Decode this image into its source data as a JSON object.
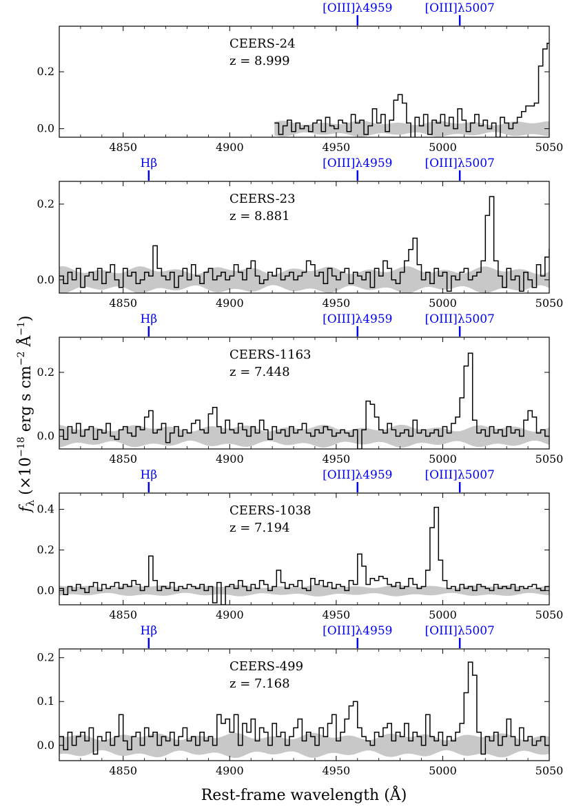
{
  "figure": {
    "xlabel": "Rest-frame wavelength (Å)",
    "ylabel_main": "f",
    "ylabel_sub": "λ",
    "ylabel_rest": " (×10",
    "ylabel_exp1": "−18",
    "ylabel_mid": " erg s cm",
    "ylabel_exp2": "−2",
    "ylabel_mid2": " Å",
    "ylabel_exp3": "−1",
    "ylabel_end": ")"
  },
  "style": {
    "spectrum_color": "#000000",
    "error_color": "#c8c8c8",
    "line_marker_color": "#0000ee"
  },
  "chart_data": [
    {
      "type": "line",
      "name": "CEERS-24",
      "redshift": "z = 8.999",
      "xlim": [
        4820,
        5050
      ],
      "ylim": [
        -0.03,
        0.36
      ],
      "yticks": [
        0.0,
        0.2
      ],
      "xticks": [
        4850,
        4900,
        4950,
        5000,
        5050
      ],
      "lines": [
        {
          "label": "[OIII]λ4959",
          "x": 4960
        },
        {
          "label": "[OIII]λ5007",
          "x": 5008
        }
      ],
      "x_start": 4921,
      "x_step": 2,
      "flux": [
        0.02,
        -0.02,
        0.01,
        0.03,
        -0.01,
        0.02,
        0.0,
        0.01,
        -0.01,
        0.02,
        0.03,
        -0.01,
        0.04,
        0.01,
        0.0,
        0.03,
        0.02,
        -0.01,
        0.05,
        0.02,
        0.03,
        -0.02,
        0.01,
        0.07,
        0.02,
        0.05,
        -0.01,
        0.03,
        0.1,
        0.12,
        0.09,
        0.02,
        -0.04,
        0.04,
        0.01,
        0.05,
        -0.02,
        0.03,
        0.02,
        0.05,
        0.01,
        0.04,
        0.0,
        0.07,
        0.03,
        -0.01,
        0.02,
        0.05,
        0.01,
        0.03,
        0.0,
        0.02,
        -0.03,
        0.04,
        0.02,
        0.0,
        0.02,
        0.04,
        0.06,
        0.08,
        0.08,
        0.09,
        0.22,
        0.28,
        0.3,
        0.05,
        -0.02,
        0.04,
        0.01,
        0.02,
        0.05,
        0.0,
        0.03,
        -0.01,
        0.05,
        -0.02,
        0.03,
        0.01,
        0.0,
        0.02,
        0.04,
        -0.01,
        0.02,
        -0.02,
        0.06,
        0.03,
        0.0,
        0.01,
        0.03,
        0.02,
        -0.02,
        0.01,
        0.04,
        0.02,
        0.0,
        -0.02,
        0.03,
        0.01,
        0.04,
        0.0,
        0.02,
        0.03,
        0.01,
        -0.01,
        0.04,
        0.02,
        0.05,
        0.0,
        0.02,
        0.03,
        0.01,
        0.04,
        0.02,
        0.01,
        0.0,
        0.02,
        0.03,
        0.04,
        0.02,
        0.0,
        0.01,
        0.02,
        0.03,
        -0.01,
        0.02,
        0.01,
        0.0,
        0.02,
        0.01,
        0.0,
        0.03,
        -0.02,
        0.02,
        0.01,
        0.0,
        0.03,
        0.01,
        0.0,
        0.02,
        0.01,
        0.02,
        0.01,
        -0.01,
        0.02,
        0.06,
        0.03,
        0.01,
        0.07,
        0.02,
        0.03,
        -0.01,
        0.02,
        0.05,
        0.0,
        0.01,
        0.03,
        0.02,
        0.01,
        0.0,
        0.02,
        0.03,
        0.04,
        0.01,
        0.02
      ],
      "error": 0.02
    },
    {
      "type": "line",
      "name": "CEERS-23",
      "redshift": "z = 8.881",
      "xlim": [
        4820,
        5050
      ],
      "ylim": [
        -0.035,
        0.26
      ],
      "yticks": [
        0.0,
        0.2
      ],
      "xticks": [
        4850,
        4900,
        4950,
        5000,
        5050
      ],
      "lines": [
        {
          "label": "Hβ",
          "x": 4862
        },
        {
          "label": "[OIII]λ4959",
          "x": 4960
        },
        {
          "label": "[OIII]λ5007",
          "x": 5008
        }
      ],
      "x_start": 4820,
      "x_step": 2,
      "flux": [
        0.01,
        -0.01,
        0.02,
        0.0,
        0.03,
        -0.02,
        0.01,
        0.02,
        0.0,
        0.03,
        -0.01,
        0.02,
        0.04,
        0.0,
        -0.02,
        0.03,
        0.01,
        0.02,
        -0.01,
        0.0,
        0.02,
        0.01,
        0.09,
        0.03,
        0.01,
        0.0,
        0.02,
        -0.02,
        0.01,
        0.03,
        0.0,
        0.04,
        0.01,
        -0.01,
        0.02,
        0.03,
        0.0,
        0.01,
        0.02,
        0.0,
        0.01,
        0.04,
        0.02,
        0.0,
        0.03,
        0.05,
        0.01,
        -0.01,
        0.0,
        0.02,
        0.01,
        0.03,
        0.0,
        0.01,
        0.02,
        0.0,
        0.01,
        0.02,
        0.05,
        0.04,
        0.01,
        0.02,
        -0.01,
        0.03,
        0.01,
        0.0,
        0.02,
        0.03,
        -0.01,
        0.02,
        0.01,
        0.0,
        0.02,
        -0.02,
        0.03,
        0.01,
        0.05,
        0.03,
        0.0,
        -0.01,
        0.02,
        0.05,
        0.08,
        0.11,
        0.04,
        0.0,
        0.02,
        -0.01,
        0.03,
        0.01,
        0.02,
        -0.03,
        0.01,
        0.0,
        0.02,
        0.03,
        0.0,
        0.01,
        0.02,
        0.05,
        0.17,
        0.22,
        0.05,
        0.01,
        -0.02,
        0.03,
        0.0,
        0.01,
        -0.03,
        0.02,
        0.0,
        -0.02,
        0.04,
        0.01,
        0.06,
        0.08,
        0.01,
        0.0,
        -0.03
      ],
      "error": 0.025
    },
    {
      "type": "line",
      "name": "CEERS-1163",
      "redshift": "z = 7.448",
      "xlim": [
        4820,
        5050
      ],
      "ylim": [
        -0.04,
        0.31
      ],
      "yticks": [
        0.0,
        0.2
      ],
      "xticks": [
        4850,
        4900,
        4950,
        5000,
        5050
      ],
      "lines": [
        {
          "label": "Hβ",
          "x": 4862
        },
        {
          "label": "[OIII]λ4959",
          "x": 4960
        },
        {
          "label": "[OIII]λ5007",
          "x": 5008
        }
      ],
      "x_start": 4820,
      "x_step": 2,
      "flux": [
        0.02,
        -0.01,
        0.03,
        0.01,
        0.04,
        0.0,
        0.02,
        0.03,
        -0.01,
        0.02,
        0.01,
        0.04,
        0.0,
        -0.01,
        0.02,
        0.03,
        0.01,
        0.0,
        0.03,
        0.02,
        0.06,
        0.08,
        0.01,
        0.02,
        0.04,
        -0.02,
        0.01,
        0.03,
        0.0,
        0.02,
        0.01,
        0.04,
        0.05,
        0.02,
        0.01,
        0.07,
        0.09,
        0.03,
        0.01,
        0.05,
        0.02,
        0.01,
        0.04,
        0.02,
        0.0,
        0.03,
        0.01,
        0.05,
        0.02,
        -0.01,
        0.03,
        0.01,
        0.02,
        0.0,
        0.03,
        0.01,
        0.02,
        0.04,
        0.01,
        0.0,
        0.02,
        0.01,
        0.03,
        0.02,
        0.0,
        0.01,
        0.02,
        0.01,
        0.0,
        0.02,
        -0.04,
        0.02,
        0.11,
        0.1,
        0.06,
        0.02,
        0.01,
        0.04,
        0.02,
        0.0,
        0.01,
        0.02,
        0.0,
        0.05,
        0.01,
        0.02,
        0.0,
        0.01,
        0.02,
        0.0,
        0.03,
        0.01,
        0.04,
        0.06,
        0.12,
        0.22,
        0.26,
        0.05,
        0.01,
        0.02,
        0.0,
        0.03,
        0.01,
        0.02,
        0.0,
        0.03,
        0.01,
        0.02,
        0.0,
        0.05,
        0.08,
        0.06,
        0.01,
        0.02,
        0.0
      ],
      "error": 0.025
    },
    {
      "type": "line",
      "name": "CEERS-1038",
      "redshift": "z = 7.194",
      "xlim": [
        4820,
        5050
      ],
      "ylim": [
        -0.07,
        0.48
      ],
      "yticks": [
        0.0,
        0.2,
        0.4
      ],
      "xticks": [
        4850,
        4900,
        4950,
        5000,
        5050
      ],
      "lines": [
        {
          "label": "Hβ",
          "x": 4862
        },
        {
          "label": "[OIII]λ4959",
          "x": 4960
        },
        {
          "label": "[OIII]λ5007",
          "x": 5008
        }
      ],
      "x_start": 4820,
      "x_step": 2,
      "flux": [
        0.01,
        -0.02,
        0.02,
        0.0,
        0.03,
        0.01,
        -0.01,
        0.02,
        0.04,
        0.0,
        0.03,
        0.01,
        0.02,
        0.04,
        0.01,
        0.03,
        0.02,
        0.05,
        0.03,
        0.0,
        0.02,
        0.17,
        0.05,
        0.0,
        0.02,
        0.01,
        0.04,
        0.0,
        0.02,
        0.01,
        0.03,
        0.02,
        0.01,
        0.03,
        0.0,
        0.02,
        -0.06,
        0.04,
        -0.07,
        0.02,
        0.03,
        0.01,
        0.05,
        0.02,
        0.0,
        0.03,
        0.01,
        0.05,
        0.03,
        0.0,
        0.02,
        0.1,
        0.04,
        0.01,
        0.03,
        0.02,
        0.05,
        0.01,
        0.0,
        0.06,
        0.03,
        0.05,
        0.02,
        0.04,
        0.01,
        0.03,
        0.02,
        0.0,
        0.05,
        0.03,
        0.18,
        0.12,
        0.03,
        0.06,
        0.05,
        0.07,
        0.06,
        0.03,
        0.02,
        0.04,
        0.01,
        0.02,
        0.06,
        0.03,
        0.01,
        0.02,
        0.1,
        0.31,
        0.41,
        0.15,
        0.05,
        0.01,
        0.02,
        0.0,
        0.03,
        0.01,
        0.02,
        0.0,
        0.03,
        0.02,
        0.01,
        0.0,
        0.03,
        0.01,
        0.02,
        0.01,
        0.03,
        0.0,
        0.02,
        0.01,
        0.02,
        0.03,
        0.01,
        0.0,
        0.02
      ],
      "error": 0.02
    },
    {
      "type": "line",
      "name": "CEERS-499",
      "redshift": "z = 7.168",
      "xlim": [
        4820,
        5050
      ],
      "ylim": [
        -0.035,
        0.22
      ],
      "yticks": [
        0.0,
        0.1,
        0.2
      ],
      "xticks": [
        4850,
        4900,
        4950,
        5000,
        5050
      ],
      "lines": [
        {
          "label": "Hβ",
          "x": 4862
        },
        {
          "label": "[OIII]λ4959",
          "x": 4960
        },
        {
          "label": "[OIII]λ5007",
          "x": 5008
        }
      ],
      "x_start": 4820,
      "x_step": 2,
      "flux": [
        0.02,
        -0.01,
        0.03,
        0.0,
        0.02,
        0.03,
        0.01,
        0.04,
        -0.02,
        0.02,
        0.01,
        0.03,
        0.0,
        0.02,
        0.07,
        0.01,
        -0.01,
        0.02,
        0.03,
        0.0,
        0.04,
        0.02,
        0.03,
        0.0,
        0.02,
        0.01,
        0.03,
        0.0,
        0.02,
        0.04,
        0.01,
        0.02,
        0.0,
        0.03,
        0.01,
        0.02,
        0.0,
        0.07,
        0.05,
        0.06,
        0.03,
        0.07,
        0.0,
        0.05,
        0.03,
        0.06,
        0.01,
        0.04,
        0.03,
        0.0,
        0.05,
        0.02,
        0.03,
        0.0,
        0.02,
        0.04,
        0.06,
        0.01,
        0.03,
        0.02,
        0.0,
        0.04,
        0.02,
        0.05,
        0.07,
        0.01,
        0.03,
        0.06,
        0.09,
        0.1,
        0.04,
        0.02,
        0.01,
        0.0,
        0.03,
        0.02,
        0.04,
        0.05,
        0.01,
        0.03,
        0.02,
        0.05,
        0.01,
        0.03,
        0.02,
        0.0,
        0.07,
        0.02,
        0.01,
        0.03,
        0.0,
        0.02,
        0.01,
        0.03,
        0.05,
        0.12,
        0.19,
        0.16,
        0.03,
        -0.02,
        0.02,
        0.01,
        0.03,
        0.0,
        0.02,
        0.06,
        0.02,
        0.0,
        0.04,
        0.01,
        0.02,
        0.0,
        0.01,
        0.02,
        0.0
      ],
      "error": 0.02
    }
  ]
}
